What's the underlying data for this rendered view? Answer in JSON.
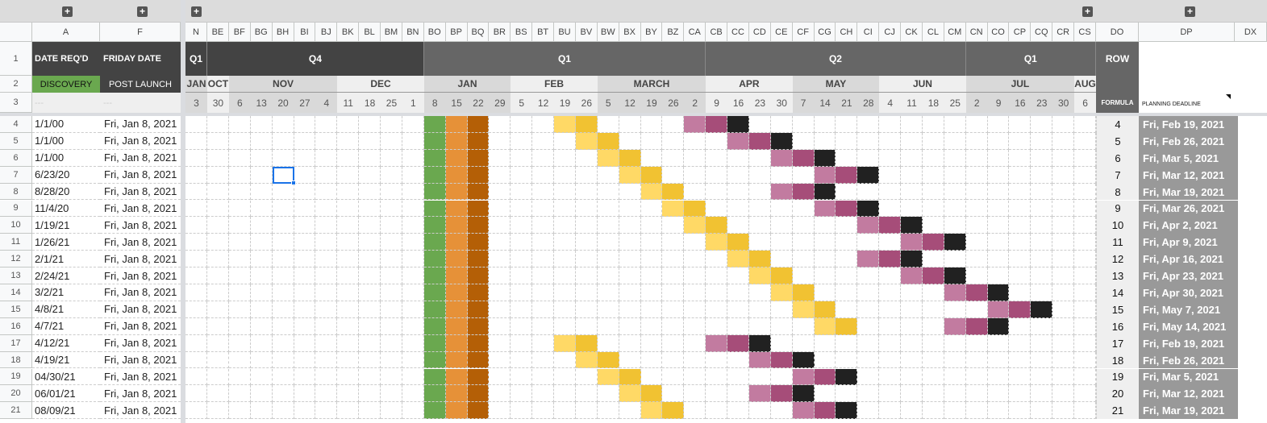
{
  "colors": {
    "discovery_green": "#6aa84f",
    "orange": "#e69138",
    "brown": "#b45f06",
    "light_yellow": "#ffd966",
    "yellow": "#f1c232",
    "pink": "#c27ba0",
    "purple": "#a64d79",
    "black": "#212121",
    "dark_header": "#434343",
    "mid_header": "#666666",
    "deadline_bg": "#999999"
  },
  "group_toggle_icon": "plus-square-icon",
  "columns": {
    "left": [
      "A",
      "F"
    ],
    "weeks": [
      "N",
      "BE",
      "BF",
      "BG",
      "BH",
      "BI",
      "BJ",
      "BK",
      "BL",
      "BM",
      "BN",
      "BO",
      "BP",
      "BQ",
      "BR",
      "BS",
      "BT",
      "BU",
      "BV",
      "BW",
      "BX",
      "BY",
      "BZ",
      "CA",
      "CB",
      "CC",
      "CD",
      "CE",
      "CF",
      "CG",
      "CH",
      "CI",
      "CJ",
      "CK",
      "CL",
      "CM",
      "CN",
      "CO",
      "CP",
      "CQ",
      "CR",
      "CS"
    ],
    "right": [
      "DO",
      "DP",
      "DX"
    ]
  },
  "header": {
    "a_title": "DATE REQ'D",
    "f_title": "FRIDAY DATE",
    "a_sub": "DISCOVERY",
    "f_sub": "POST LAUNCH",
    "a_row3": "---",
    "f_row3": "---",
    "row_title": "ROW",
    "row_sub": "FORMULA",
    "deadline_title": "PLANNING DEADLINE",
    "filter_icon": "filter-triangle-icon"
  },
  "quarters": [
    {
      "label": "Q1",
      "from": "N",
      "to": "N",
      "tone": "dark"
    },
    {
      "label": "Q4",
      "from": "BE",
      "to": "BN",
      "tone": "dark"
    },
    {
      "label": "Q1",
      "from": "BO",
      "to": "CA",
      "tone": "mid"
    },
    {
      "label": "Q2",
      "from": "CB",
      "to": "CM",
      "tone": "mid"
    },
    {
      "label": "Q1",
      "from": "CN",
      "to": "CS",
      "tone": "mid"
    }
  ],
  "months": [
    {
      "label": "JAN",
      "from": "N",
      "to": "N",
      "shade": "#d9d9d9"
    },
    {
      "label": "OCT",
      "from": "BE",
      "to": "BE",
      "shade": "#efefef"
    },
    {
      "label": "NOV",
      "from": "BF",
      "to": "BJ",
      "shade": "#d9d9d9"
    },
    {
      "label": "DEC",
      "from": "BK",
      "to": "BN",
      "shade": "#efefef"
    },
    {
      "label": "JAN",
      "from": "BO",
      "to": "BR",
      "shade": "#d9d9d9"
    },
    {
      "label": "FEB",
      "from": "BS",
      "to": "BV",
      "shade": "#efefef"
    },
    {
      "label": "MARCH",
      "from": "BW",
      "to": "CA",
      "shade": "#d9d9d9"
    },
    {
      "label": "APR",
      "from": "CB",
      "to": "CE",
      "shade": "#efefef"
    },
    {
      "label": "MAY",
      "from": "CF",
      "to": "CI",
      "shade": "#d9d9d9"
    },
    {
      "label": "JUN",
      "from": "CJ",
      "to": "CM",
      "shade": "#efefef"
    },
    {
      "label": "JUL",
      "from": "CN",
      "to": "CR",
      "shade": "#d9d9d9"
    },
    {
      "label": "AUG",
      "from": "CS",
      "to": "CS",
      "shade": "#efefef"
    }
  ],
  "week_days": [
    "3",
    "30",
    "6",
    "13",
    "20",
    "27",
    "4",
    "11",
    "18",
    "25",
    "1",
    "8",
    "15",
    "22",
    "29",
    "5",
    "12",
    "19",
    "26",
    "5",
    "12",
    "19",
    "26",
    "2",
    "9",
    "16",
    "23",
    "30",
    "7",
    "14",
    "21",
    "28",
    "4",
    "11",
    "18",
    "25",
    "2",
    "9",
    "16",
    "23",
    "30",
    "6"
  ],
  "fixed_fill": [
    {
      "col": "BO",
      "color": "#6aa84f"
    },
    {
      "col": "BP",
      "color": "#e69138"
    },
    {
      "col": "BQ",
      "color": "#b45f06"
    }
  ],
  "selected_cell": {
    "col": "BH",
    "row": 7
  },
  "rows": [
    {
      "num": "4",
      "a": "1/1/00",
      "f": "Fri, Jan 8, 2021",
      "row": "4",
      "deadline": "Fri, Feb 19, 2021",
      "yellow_start": "BU",
      "pink_start": "CA"
    },
    {
      "num": "5",
      "a": "1/1/00",
      "f": "Fri, Jan 8, 2021",
      "row": "5",
      "deadline": "Fri, Feb 26, 2021",
      "yellow_start": "BV",
      "pink_start": "CC"
    },
    {
      "num": "6",
      "a": "1/1/00",
      "f": "Fri, Jan 8, 2021",
      "row": "6",
      "deadline": "Fri, Mar 5, 2021",
      "yellow_start": "BW",
      "pink_start": "CE"
    },
    {
      "num": "7",
      "a": "6/23/20",
      "f": "Fri, Jan 8, 2021",
      "row": "7",
      "deadline": "Fri, Mar 12, 2021",
      "yellow_start": "BX",
      "pink_start": "CG"
    },
    {
      "num": "8",
      "a": "8/28/20",
      "f": "Fri, Jan 8, 2021",
      "row": "8",
      "deadline": "Fri, Mar 19, 2021",
      "yellow_start": "BY",
      "pink_start": "CE"
    },
    {
      "num": "9",
      "a": "11/4/20",
      "f": "Fri, Jan 8, 2021",
      "row": "9",
      "deadline": "Fri, Mar 26, 2021",
      "yellow_start": "BZ",
      "pink_start": "CG"
    },
    {
      "num": "10",
      "a": "1/19/21",
      "f": "Fri, Jan 8, 2021",
      "row": "10",
      "deadline": "Fri, Apr 2, 2021",
      "yellow_start": "CA",
      "pink_start": "CI"
    },
    {
      "num": "11",
      "a": "1/26/21",
      "f": "Fri, Jan 8, 2021",
      "row": "11",
      "deadline": "Fri, Apr 9, 2021",
      "yellow_start": "CB",
      "pink_start": "CK"
    },
    {
      "num": "12",
      "a": "2/1/21",
      "f": "Fri, Jan 8, 2021",
      "row": "12",
      "deadline": "Fri, Apr 16, 2021",
      "yellow_start": "CC",
      "pink_start": "CI"
    },
    {
      "num": "13",
      "a": "2/24/21",
      "f": "Fri, Jan 8, 2021",
      "row": "13",
      "deadline": "Fri, Apr 23, 2021",
      "yellow_start": "CD",
      "pink_start": "CK"
    },
    {
      "num": "14",
      "a": "3/2/21",
      "f": "Fri, Jan 8, 2021",
      "row": "14",
      "deadline": "Fri, Apr 30, 2021",
      "yellow_start": "CE",
      "pink_start": "CM"
    },
    {
      "num": "15",
      "a": "4/8/21",
      "f": "Fri, Jan 8, 2021",
      "row": "15",
      "deadline": "Fri, May 7, 2021",
      "yellow_start": "CF",
      "pink_start": "CO"
    },
    {
      "num": "16",
      "a": "4/7/21",
      "f": "Fri, Jan 8, 2021",
      "row": "16",
      "deadline": "Fri, May 14, 2021",
      "yellow_start": "CG",
      "pink_start": "CM"
    },
    {
      "num": "17",
      "a": "4/12/21",
      "f": "Fri, Jan 8, 2021",
      "row": "17",
      "deadline": "Fri, Feb 19, 2021",
      "yellow_start": "BU",
      "pink_start": "CB"
    },
    {
      "num": "18",
      "a": "4/19/21",
      "f": "Fri, Jan 8, 2021",
      "row": "18",
      "deadline": "Fri, Feb 26, 2021",
      "yellow_start": "BV",
      "pink_start": "CD"
    },
    {
      "num": "19",
      "a": "04/30/21",
      "f": "Fri, Jan 8, 2021",
      "row": "19",
      "deadline": "Fri, Mar 5, 2021",
      "yellow_start": "BW",
      "pink_start": "CF"
    },
    {
      "num": "20",
      "a": "06/01/21",
      "f": "Fri, Jan 8, 2021",
      "row": "20",
      "deadline": "Fri, Mar 12, 2021",
      "yellow_start": "BX",
      "pink_start": "CD"
    },
    {
      "num": "21",
      "a": "08/09/21",
      "f": "Fri, Jan 8, 2021",
      "row": "21",
      "deadline": "Fri, Mar 19, 2021",
      "yellow_start": "BY",
      "pink_start": "CF"
    }
  ],
  "row_numbers_header": [
    "1",
    "2",
    "3"
  ]
}
